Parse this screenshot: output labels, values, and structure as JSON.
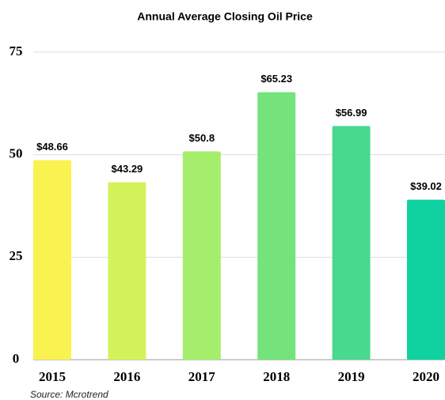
{
  "chart_data": {
    "type": "bar",
    "title": "Annual Average Closing Oil Price",
    "categories": [
      "2015",
      "2016",
      "2017",
      "2018",
      "2019",
      "2020"
    ],
    "values": [
      48.66,
      43.29,
      50.8,
      65.23,
      56.99,
      39.02
    ],
    "value_labels": [
      "$48.66",
      "$43.29",
      "$50.8",
      "$65.23",
      "$56.99",
      "$39.02"
    ],
    "colors": [
      "#f9f24f",
      "#d3f25a",
      "#a5ee6b",
      "#74e37c",
      "#48d98f",
      "#10d1a0"
    ],
    "ylim": [
      0,
      75
    ],
    "yticks": [
      0,
      25,
      50,
      75
    ],
    "grid": true,
    "source": "Source: Mcrotrend"
  }
}
